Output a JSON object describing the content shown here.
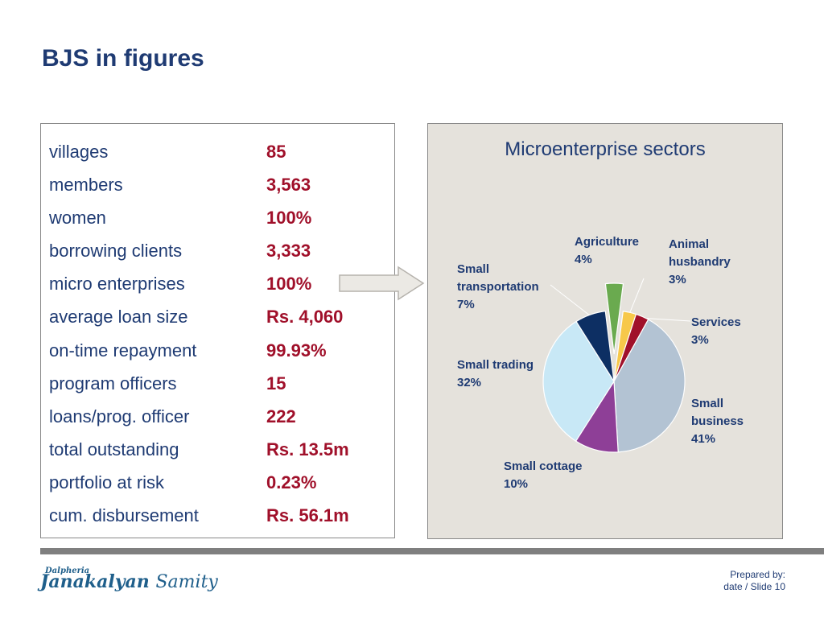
{
  "slide": {
    "title": "BJS in figures"
  },
  "stats": [
    {
      "label": "villages",
      "value": "85"
    },
    {
      "label": "members",
      "value": "3,563"
    },
    {
      "label": "women",
      "value": "100%"
    },
    {
      "label": "borrowing clients",
      "value": "3,333"
    },
    {
      "label": "micro enterprises",
      "value": "100%"
    },
    {
      "label": "average loan size",
      "value": "Rs. 4,060"
    },
    {
      "label": "on-time repayment",
      "value": "99.93%"
    },
    {
      "label": "program officers",
      "value": "15"
    },
    {
      "label": "loans/prog. officer",
      "value": "222"
    },
    {
      "label": "total outstanding",
      "value": "Rs. 13.5m"
    },
    {
      "label": "portfolio at risk",
      "value": "0.23%"
    },
    {
      "label": "cum. disbursement",
      "value": "Rs. 56.1m"
    }
  ],
  "chart_data": {
    "type": "pie",
    "title": "Microenterprise sectors",
    "slices": [
      {
        "label": "Agriculture",
        "pct_text": "4%",
        "value": 4,
        "color": "#6aaa4f",
        "exploded": true
      },
      {
        "label": "Animal husbandry",
        "pct_text": "3%",
        "value": 3,
        "color": "#f7c84a"
      },
      {
        "label": "Services",
        "pct_text": "3%",
        "value": 3,
        "color": "#a0102a"
      },
      {
        "label": "Small business",
        "pct_text": "41%",
        "value": 41,
        "color": "#b3c3d3"
      },
      {
        "label": "Small cottage",
        "pct_text": "10%",
        "value": 10,
        "color": "#8e3f97"
      },
      {
        "label": "Small trading",
        "pct_text": "32%",
        "value": 32,
        "color": "#c8e8f6"
      },
      {
        "label": "Small transportation",
        "pct_text": "7%",
        "value": 7,
        "color": "#0d2f63"
      }
    ]
  },
  "footer": {
    "logo_small": "Dalpheria",
    "logo_main": "Janakalyan",
    "logo_sub": "Samity",
    "prepared_by": "Prepared by:",
    "slide_info": "date  / Slide 10"
  },
  "colors": {
    "title": "#1f3b73",
    "value": "#a0102a",
    "chart_bg": "#e5e2dc",
    "footer_bar": "#7f7f7f"
  }
}
